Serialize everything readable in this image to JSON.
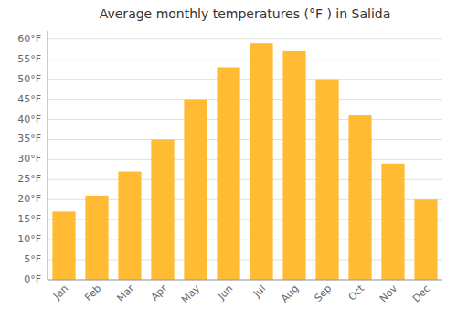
{
  "chart_data": {
    "type": "bar",
    "title": "Average monthly temperatures (°F ) in Salida",
    "categories": [
      "Jan",
      "Feb",
      "Mar",
      "Apr",
      "May",
      "Jun",
      "Jul",
      "Aug",
      "Sep",
      "Oct",
      "Nov",
      "Dec"
    ],
    "values": [
      17,
      21,
      27,
      35,
      45,
      53,
      59,
      57,
      50,
      41,
      29,
      20
    ],
    "color": "#FFBB33",
    "ylim": [
      0,
      62
    ],
    "yticks": [
      {
        "value": 0,
        "label": "0°F"
      },
      {
        "value": 5,
        "label": "5°F"
      },
      {
        "value": 10,
        "label": "10°F"
      },
      {
        "value": 15,
        "label": "15°F"
      },
      {
        "value": 20,
        "label": "20°F"
      },
      {
        "value": 25,
        "label": "25°F"
      },
      {
        "value": 30,
        "label": "30°F"
      },
      {
        "value": 35,
        "label": "35°F"
      },
      {
        "value": 40,
        "label": "40°F"
      },
      {
        "value": 45,
        "label": "45°F"
      },
      {
        "value": 50,
        "label": "50°F"
      },
      {
        "value": 55,
        "label": "55°F"
      },
      {
        "value": 60,
        "label": "60°F"
      }
    ],
    "grid": true
  }
}
